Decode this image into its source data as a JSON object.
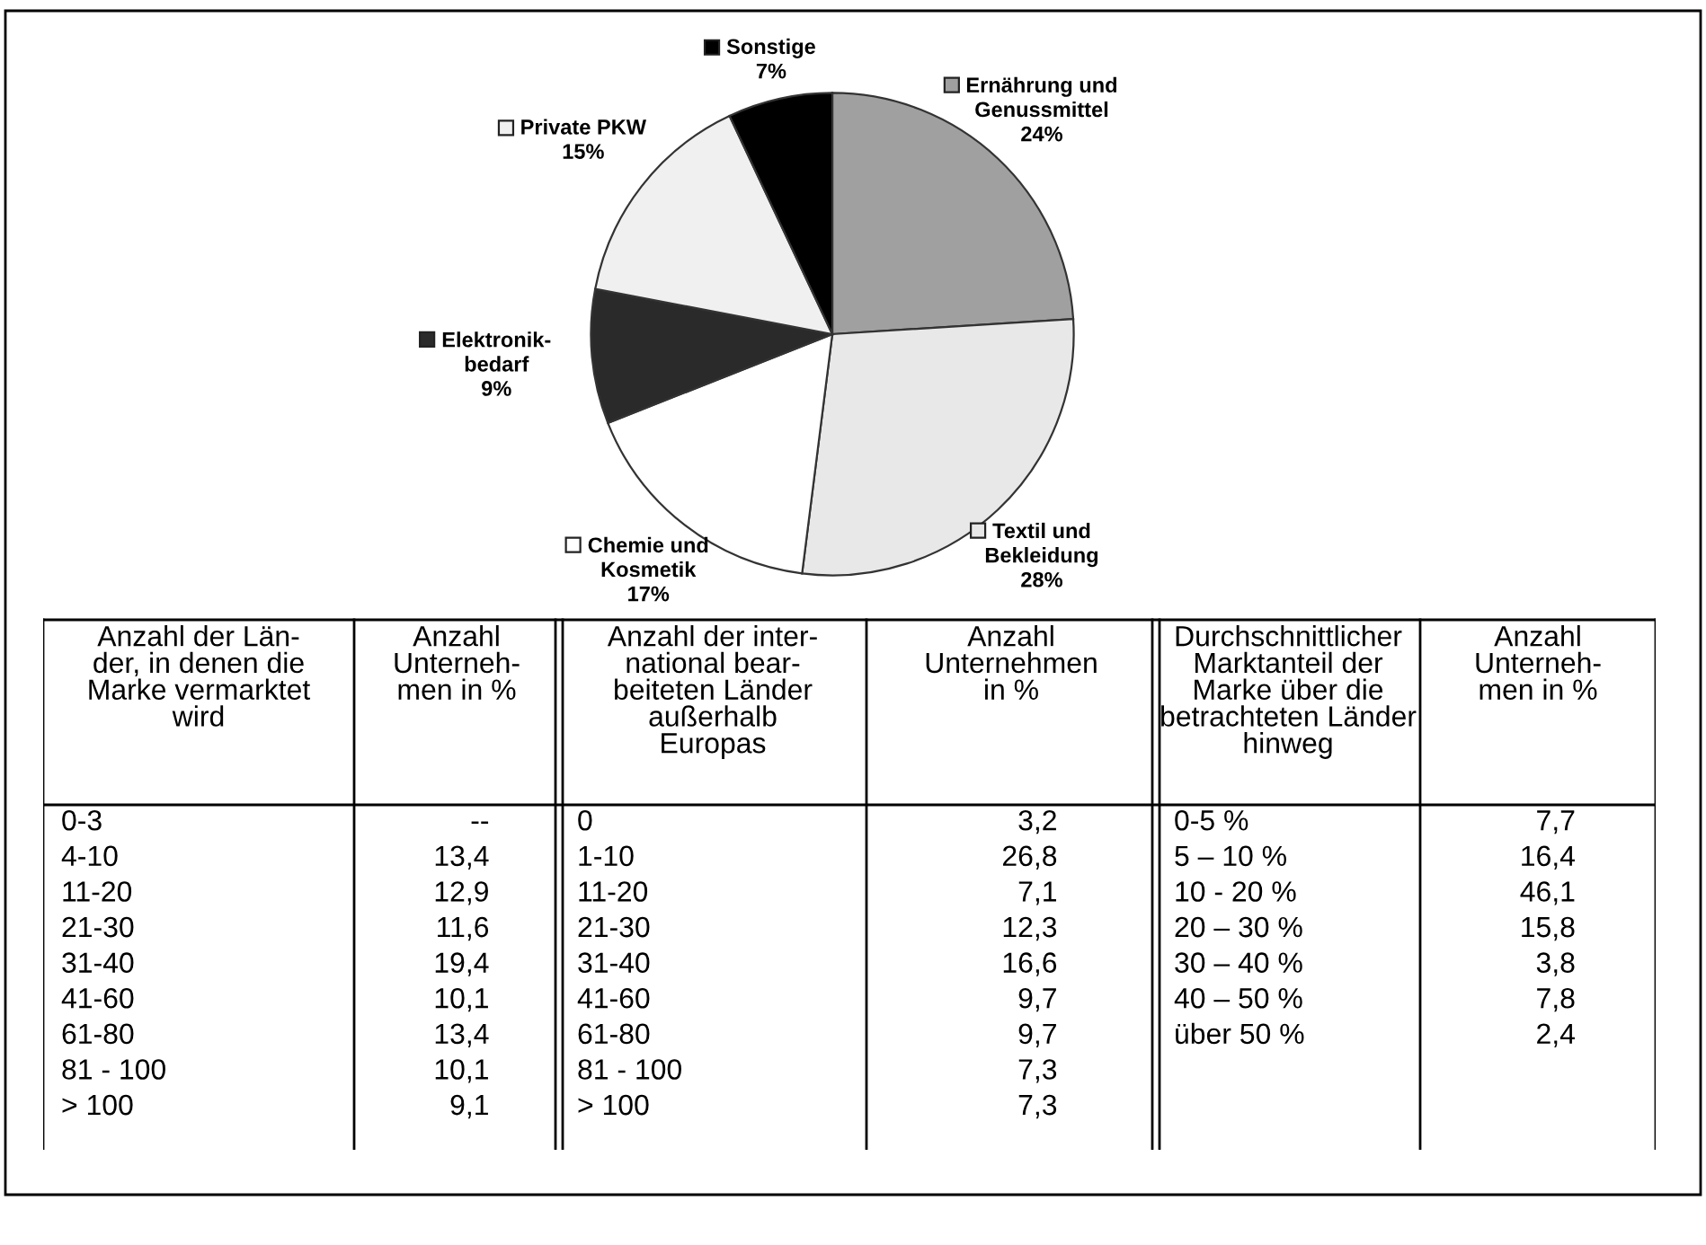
{
  "chart_data": [
    {
      "type": "pie",
      "categories": [
        "Ernährung und\nGenussmittel",
        "Textil und\nBekleidung",
        "Chemie und\nKosmetik",
        "Elektronik-\nbedarf",
        "Private PKW",
        "Sonstige"
      ],
      "values": [
        24,
        28,
        17,
        9,
        15,
        7
      ],
      "colors": [
        "#a0a0a0",
        "#e8e8e8",
        "#ffffff",
        "#2a2a2a",
        "#f0f0f0",
        "#000000"
      ],
      "value_labels": [
        "24%",
        "28%",
        "17%",
        "9%",
        "15%",
        "7%"
      ],
      "legend": "top left"
    },
    {
      "type": "other",
      "categories": [
        "Anzahl der Län-\nder, in denen die\nMarke vermarktet\nwird",
        "Anzahl\nUnterneh-\nmen in %",
        "Anzahl der inter-\nnational bear-\nbeiteten Länder\naußerhalb\nEuropas",
        "Anzahl\nUnternehmen\nin %",
        "Durchschnittlicher\nMarktanteil der\nMarke über die\nbetrachteten Länder\nhinweg",
        "Anzahl\nUnterneh-\nmen in %"
      ],
      "cell_labels": [
        [
          "0-3",
          "--",
          "0",
          "3,2",
          "0-5 %",
          "7,7"
        ],
        [
          "4-10",
          "13,4",
          "1-10",
          "26,8",
          "5 – 10 %",
          "16,4"
        ],
        [
          "11-20",
          "12,9",
          "11-20",
          "7,1",
          "10 - 20 %",
          "46,1"
        ],
        [
          "21-30",
          "11,6",
          "21-30",
          "12,3",
          "20 – 30 %",
          "15,8"
        ],
        [
          "31-40",
          "19,4",
          "31-40",
          "16,6",
          "30 – 40 %",
          "3,8"
        ],
        [
          "41-60",
          "10,1",
          "41-60",
          "9,7",
          "40 – 50 %",
          "7,8"
        ],
        [
          "61-80",
          "13,4",
          "61-80",
          "9,7",
          "über 50 %",
          "2,4"
        ],
        [
          "81 - 100",
          "10,1",
          "81 - 100",
          "7,3",
          null,
          null
        ],
        [
          "> 100",
          "9,1",
          "> 100",
          "7,3",
          null,
          null
        ]
      ]
    }
  ]
}
